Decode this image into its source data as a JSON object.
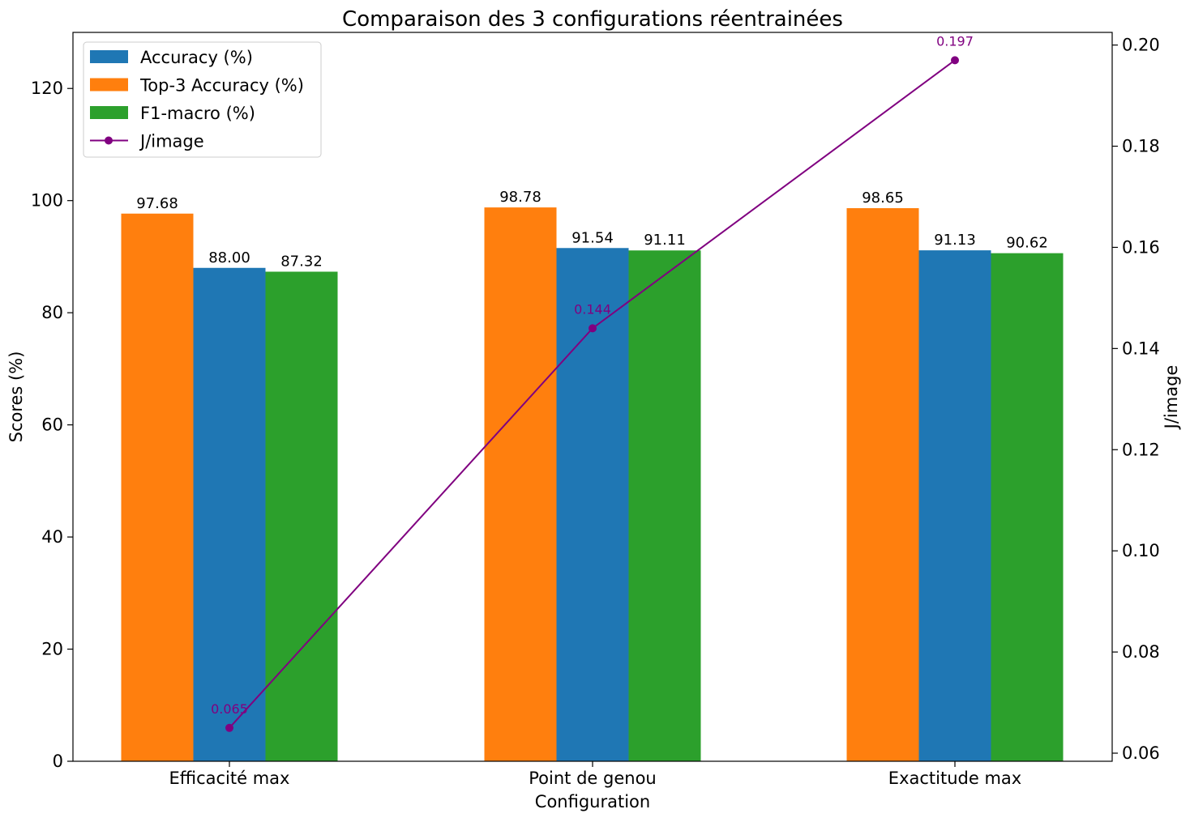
{
  "chart_data": {
    "type": "bar",
    "title": "Comparaison des 3 configurations réentrainées",
    "xlabel": "Configuration",
    "ylabel": "Scores (%)",
    "y2label": "J/image",
    "categories": [
      "Efficacité max",
      "Point de genou",
      "Exactitude max"
    ],
    "ylim": [
      0,
      130
    ],
    "yticks": [
      "0",
      "20",
      "40",
      "60",
      "80",
      "100",
      "120"
    ],
    "y2lim": [
      0.0584,
      0.2025
    ],
    "y2ticks": [
      "0.06",
      "0.08",
      "0.10",
      "0.12",
      "0.14",
      "0.16",
      "0.18",
      "0.20"
    ],
    "bar_order": [
      "Top-3 Accuracy (%)",
      "Accuracy (%)",
      "F1-macro (%)"
    ],
    "series": [
      {
        "name": "Accuracy (%)",
        "kind": "bar",
        "color": "#1f77b4",
        "values": [
          88.0,
          91.54,
          91.13
        ],
        "labels": [
          "88.00",
          "91.54",
          "91.13"
        ]
      },
      {
        "name": "Top-3 Accuracy (%)",
        "kind": "bar",
        "color": "#ff7f0e",
        "values": [
          97.68,
          98.78,
          98.65
        ],
        "labels": [
          "97.68",
          "98.78",
          "98.65"
        ]
      },
      {
        "name": "F1-macro (%)",
        "kind": "bar",
        "color": "#2ca02c",
        "values": [
          87.32,
          91.11,
          90.62
        ],
        "labels": [
          "87.32",
          "91.11",
          "90.62"
        ]
      },
      {
        "name": "J/image",
        "kind": "line",
        "axis": "right",
        "color": "#800080",
        "marker": "circle",
        "values": [
          0.065,
          0.144,
          0.197
        ],
        "labels": [
          "0.065",
          "0.144",
          "0.197"
        ]
      }
    ],
    "legend": "upper-left",
    "grid": false
  }
}
